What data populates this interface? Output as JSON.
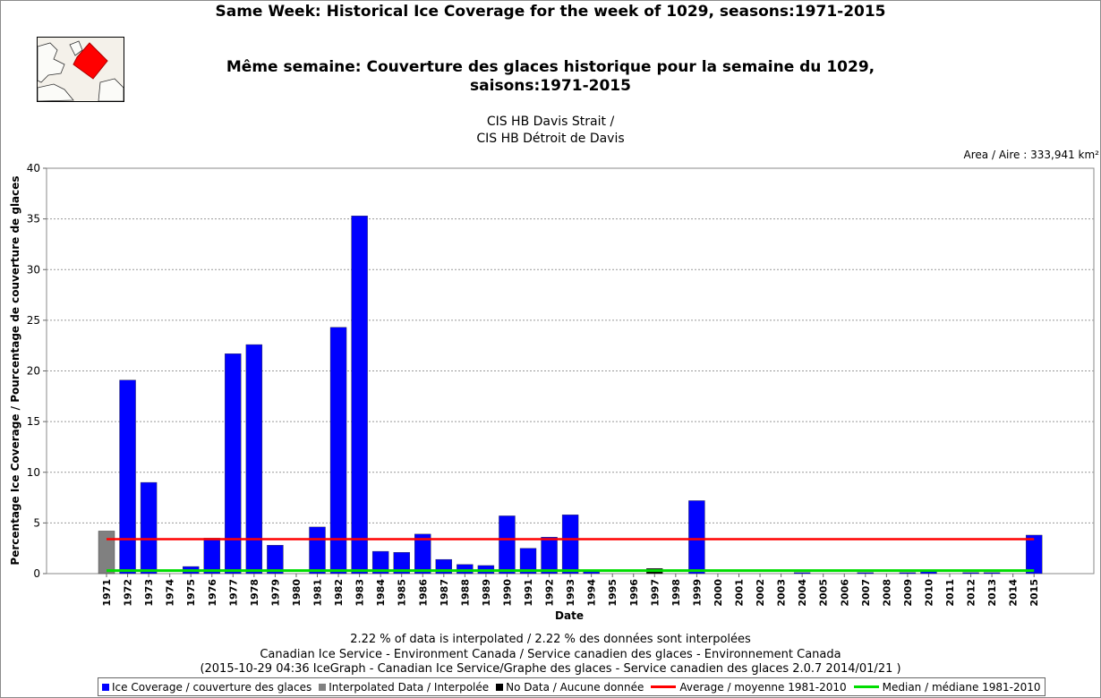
{
  "title_en": "Same Week: Historical Ice Coverage for the week of 1029, seasons:1971-2015",
  "title_fr": "Même semaine: Couverture des glaces historique pour la semaine du 1029, saisons:1971-2015",
  "region_en": "CIS HB Davis Strait /",
  "region_fr": "CIS HB Détroit de Davis",
  "area": "Area / Aire : 333,941 km²",
  "footer": {
    "interp": "2.22 % of data is interpolated / 2.22 % des données sont interpolées",
    "credit": "Canadian Ice Service - Environment Canada / Service canadien des glaces - Environnement Canada",
    "version": "(2015-10-29 04:36 IceGraph - Canadian Ice Service/Graphe des glaces - Service canadien des glaces 2.0.7 2014/01/21 )"
  },
  "legend": {
    "ice": "Ice Coverage / couverture des glaces",
    "interp": "Interpolated Data / Interpolée",
    "nodata": "No Data / Aucune donnée",
    "avg": "Average / moyenne 1981-2010",
    "median": "Median / médiane 1981-2010"
  },
  "chart_data": {
    "type": "bar",
    "xlabel": "Date",
    "ylabel": "Percentage Ice Coverage / Pourcentage de couverture de glaces",
    "ylim": [
      0,
      40
    ],
    "yticks": [
      0,
      5,
      10,
      15,
      20,
      25,
      30,
      35,
      40
    ],
    "grid": true,
    "legend_position": "bottom",
    "categories": [
      "1971",
      "1972",
      "1973",
      "1974",
      "1975",
      "1976",
      "1977",
      "1978",
      "1979",
      "1980",
      "1981",
      "1982",
      "1983",
      "1984",
      "1985",
      "1986",
      "1987",
      "1988",
      "1989",
      "1990",
      "1991",
      "1992",
      "1993",
      "1994",
      "1995",
      "1996",
      "1997",
      "1998",
      "1999",
      "2000",
      "2001",
      "2002",
      "2003",
      "2004",
      "2005",
      "2006",
      "2007",
      "2008",
      "2009",
      "2010",
      "2011",
      "2012",
      "2013",
      "2014",
      "2015"
    ],
    "values": [
      4.2,
      19.1,
      9.0,
      0,
      0.7,
      3.5,
      21.7,
      22.6,
      2.8,
      0,
      4.6,
      24.3,
      35.3,
      2.2,
      2.1,
      3.9,
      1.4,
      0.9,
      0.8,
      5.7,
      2.5,
      3.6,
      5.8,
      0.3,
      0,
      0,
      0.5,
      0,
      7.2,
      0,
      0,
      0,
      0,
      0.1,
      0,
      0,
      0.1,
      0,
      0.1,
      0.3,
      0,
      0.1,
      0.1,
      0,
      3.8
    ],
    "bar_status": [
      "interpolated",
      "ice",
      "ice",
      "ice",
      "ice",
      "ice",
      "ice",
      "ice",
      "ice",
      "ice",
      "ice",
      "ice",
      "ice",
      "ice",
      "ice",
      "ice",
      "ice",
      "ice",
      "ice",
      "ice",
      "ice",
      "ice",
      "ice",
      "ice",
      "ice",
      "ice",
      "nodata",
      "ice",
      "ice",
      "ice",
      "ice",
      "ice",
      "ice",
      "ice",
      "ice",
      "ice",
      "ice",
      "ice",
      "ice",
      "ice",
      "ice",
      "ice",
      "ice",
      "ice",
      "ice"
    ],
    "average": 3.4,
    "median": 0.3,
    "colors": {
      "ice": "#0000ff",
      "interpolated": "#808080",
      "nodata": "#000000",
      "average": "#ff0000",
      "median": "#00dd00"
    }
  }
}
